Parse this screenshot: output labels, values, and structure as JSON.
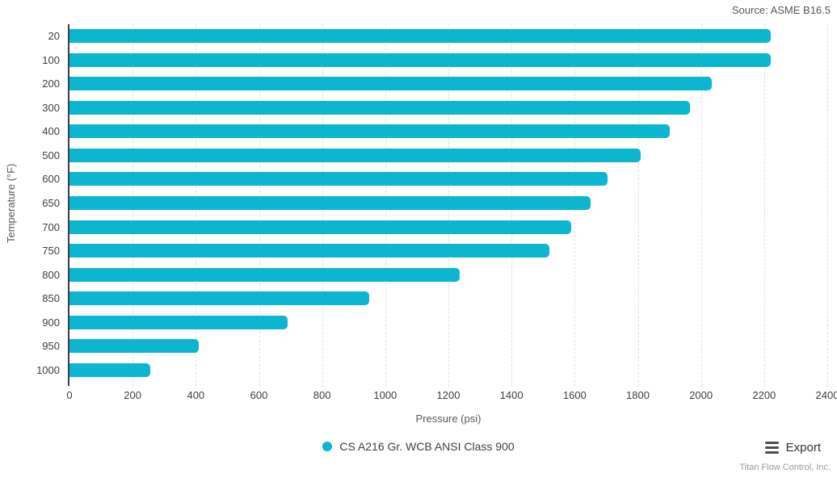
{
  "header": {
    "source_note": "Source: ASME B16.5"
  },
  "toolbar": {
    "export_label": "Export"
  },
  "footer": {
    "company": "Titan Flow Control, Inc."
  },
  "chart_data": {
    "type": "bar",
    "orientation": "horizontal",
    "title": "",
    "xlabel": "Pressure (psi)",
    "ylabel": "Temperature (°F)",
    "categories": [
      "20",
      "100",
      "200",
      "300",
      "400",
      "500",
      "600",
      "650",
      "700",
      "750",
      "800",
      "850",
      "900",
      "950",
      "1000"
    ],
    "series": [
      {
        "name": "CS A216 Gr. WCB ANSI Class 900",
        "color": "#0cb6d0",
        "values": [
          2220,
          2220,
          2035,
          1965,
          1900,
          1810,
          1705,
          1650,
          1590,
          1520,
          1235,
          950,
          690,
          410,
          255
        ]
      }
    ],
    "xlim": [
      0,
      2400
    ],
    "xticks": [
      0,
      200,
      400,
      600,
      800,
      1000,
      1200,
      1400,
      1600,
      1800,
      2000,
      2200,
      2400
    ],
    "grid": "vertical-dashed",
    "legend_position": "bottom-center"
  }
}
